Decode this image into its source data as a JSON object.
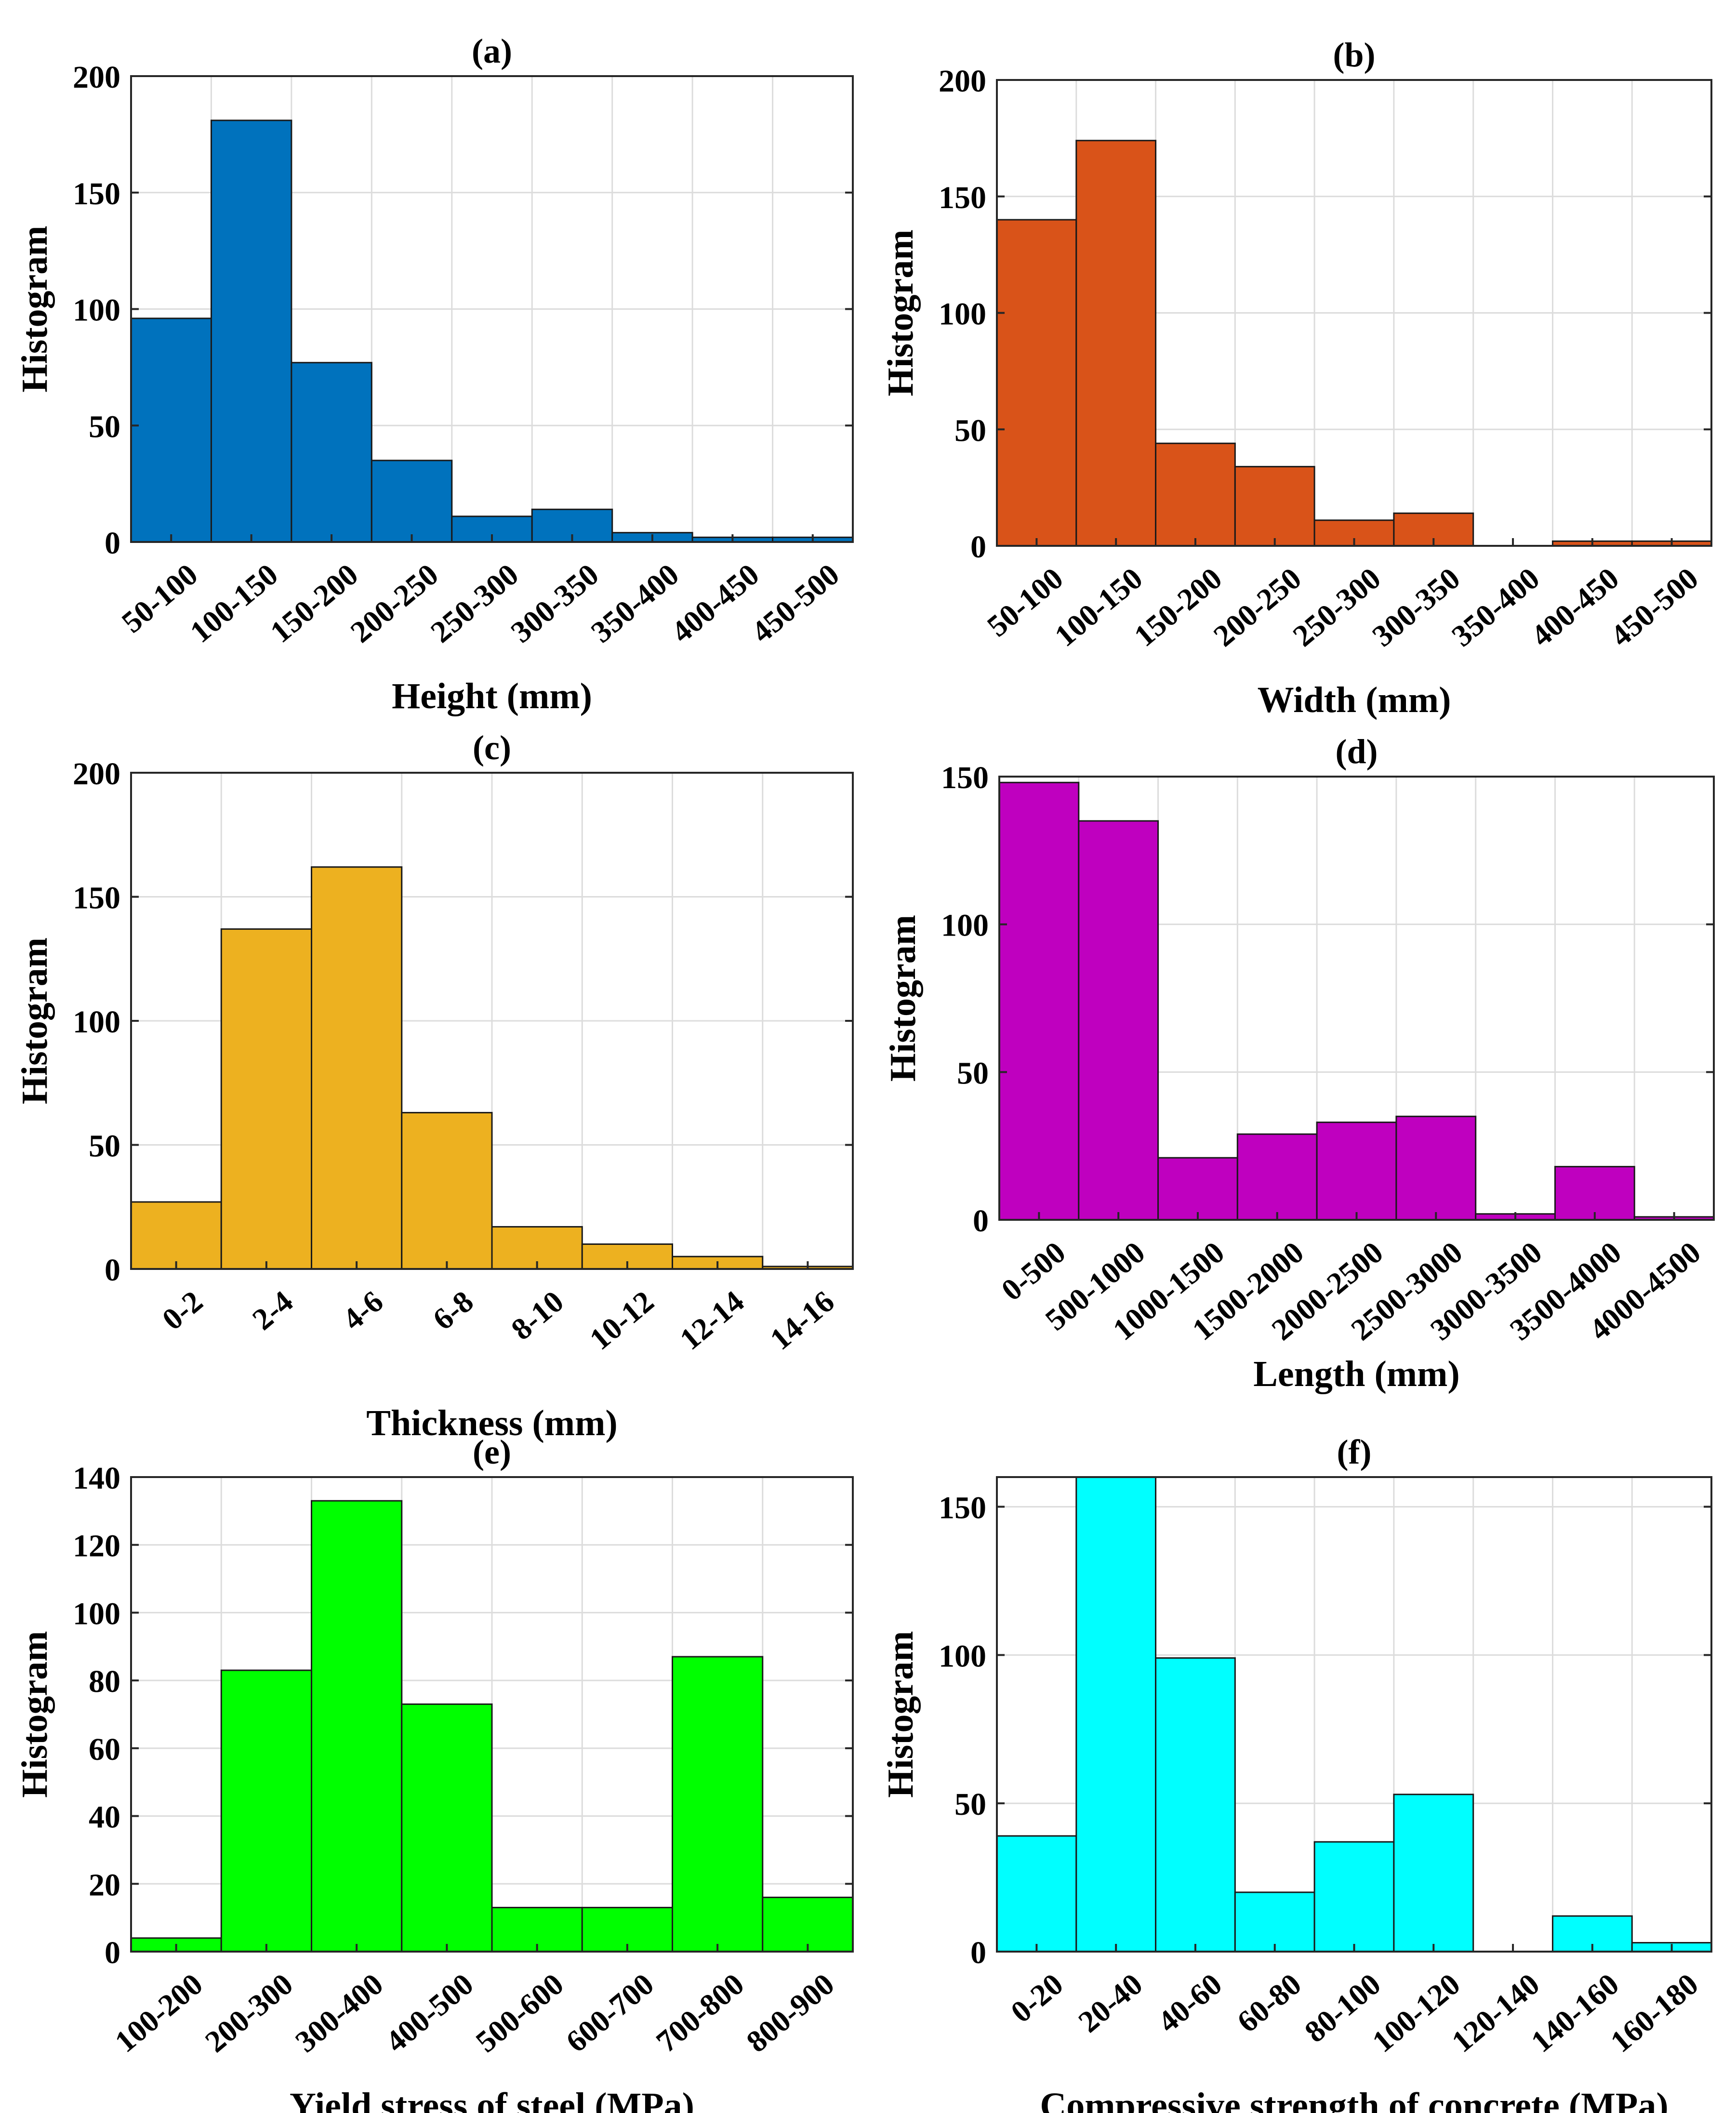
{
  "chart_data": [
    {
      "id": "a",
      "type": "bar",
      "title": "(a)",
      "xlabel": "Height (mm)",
      "ylabel": "Histogram",
      "color": "#0072BD",
      "categories": [
        "50-100",
        "100-150",
        "150-200",
        "200-250",
        "250-300",
        "300-350",
        "350-400",
        "400-450",
        "450-500"
      ],
      "values": [
        96,
        181,
        77,
        35,
        11,
        14,
        4,
        2,
        2
      ],
      "ylim": [
        0,
        200
      ],
      "yticks": [
        0,
        50,
        100,
        150,
        200
      ],
      "grid": true
    },
    {
      "id": "b",
      "type": "bar",
      "title": "(b)",
      "xlabel": "Width (mm)",
      "ylabel": "Histogram",
      "color": "#D95319",
      "categories": [
        "50-100",
        "100-150",
        "150-200",
        "200-250",
        "250-300",
        "300-350",
        "350-400",
        "400-450",
        "450-500"
      ],
      "values": [
        140,
        174,
        44,
        34,
        11,
        14,
        0,
        2,
        2
      ],
      "ylim": [
        0,
        200
      ],
      "yticks": [
        0,
        50,
        100,
        150,
        200
      ],
      "grid": true
    },
    {
      "id": "c",
      "type": "bar",
      "title": "(c)",
      "xlabel": "Thickness (mm)",
      "ylabel": "Histogram",
      "color": "#EDB120",
      "categories": [
        "0-2",
        "2-4",
        "4-6",
        "6-8",
        "8-10",
        "10-12",
        "12-14",
        "14-16"
      ],
      "values": [
        27,
        137,
        162,
        63,
        17,
        10,
        5,
        1
      ],
      "ylim": [
        0,
        200
      ],
      "yticks": [
        0,
        50,
        100,
        150,
        200
      ],
      "grid": true
    },
    {
      "id": "d",
      "type": "bar",
      "title": "(d)",
      "xlabel": "Length (mm)",
      "ylabel": "Histogram",
      "color": "#BF00BF",
      "categories": [
        "0-500",
        "500-1000",
        "1000-1500",
        "1500-2000",
        "2000-2500",
        "2500-3000",
        "3000-3500",
        "3500-4000",
        "4000-4500"
      ],
      "values": [
        148,
        135,
        21,
        29,
        33,
        35,
        2,
        18,
        1
      ],
      "ylim": [
        0,
        150
      ],
      "yticks": [
        0,
        50,
        100,
        150
      ],
      "grid": true
    },
    {
      "id": "e",
      "type": "bar",
      "title": "(e)",
      "xlabel": "Yield stress of steel (MPa)",
      "ylabel": "Histogram",
      "color": "#00FF00",
      "categories": [
        "100-200",
        "200-300",
        "300-400",
        "400-500",
        "500-600",
        "600-700",
        "700-800",
        "800-900"
      ],
      "values": [
        4,
        83,
        133,
        73,
        13,
        13,
        87,
        16
      ],
      "ylim": [
        0,
        140
      ],
      "yticks": [
        0,
        20,
        40,
        60,
        80,
        100,
        120,
        140
      ],
      "grid": true
    },
    {
      "id": "f",
      "type": "bar",
      "title": "(f)",
      "xlabel": "Compressive strength of concrete (MPa)",
      "ylabel": "Histogram",
      "color": "#00FFFF",
      "categories": [
        "0-20",
        "20-40",
        "40-60",
        "60-80",
        "80-100",
        "100-120",
        "120-140",
        "140-160",
        "160-180"
      ],
      "values": [
        39,
        160,
        99,
        20,
        37,
        53,
        0,
        12,
        3
      ],
      "ylim": [
        0,
        160
      ],
      "yticks": [
        0,
        50,
        100,
        150
      ],
      "grid": true
    }
  ]
}
